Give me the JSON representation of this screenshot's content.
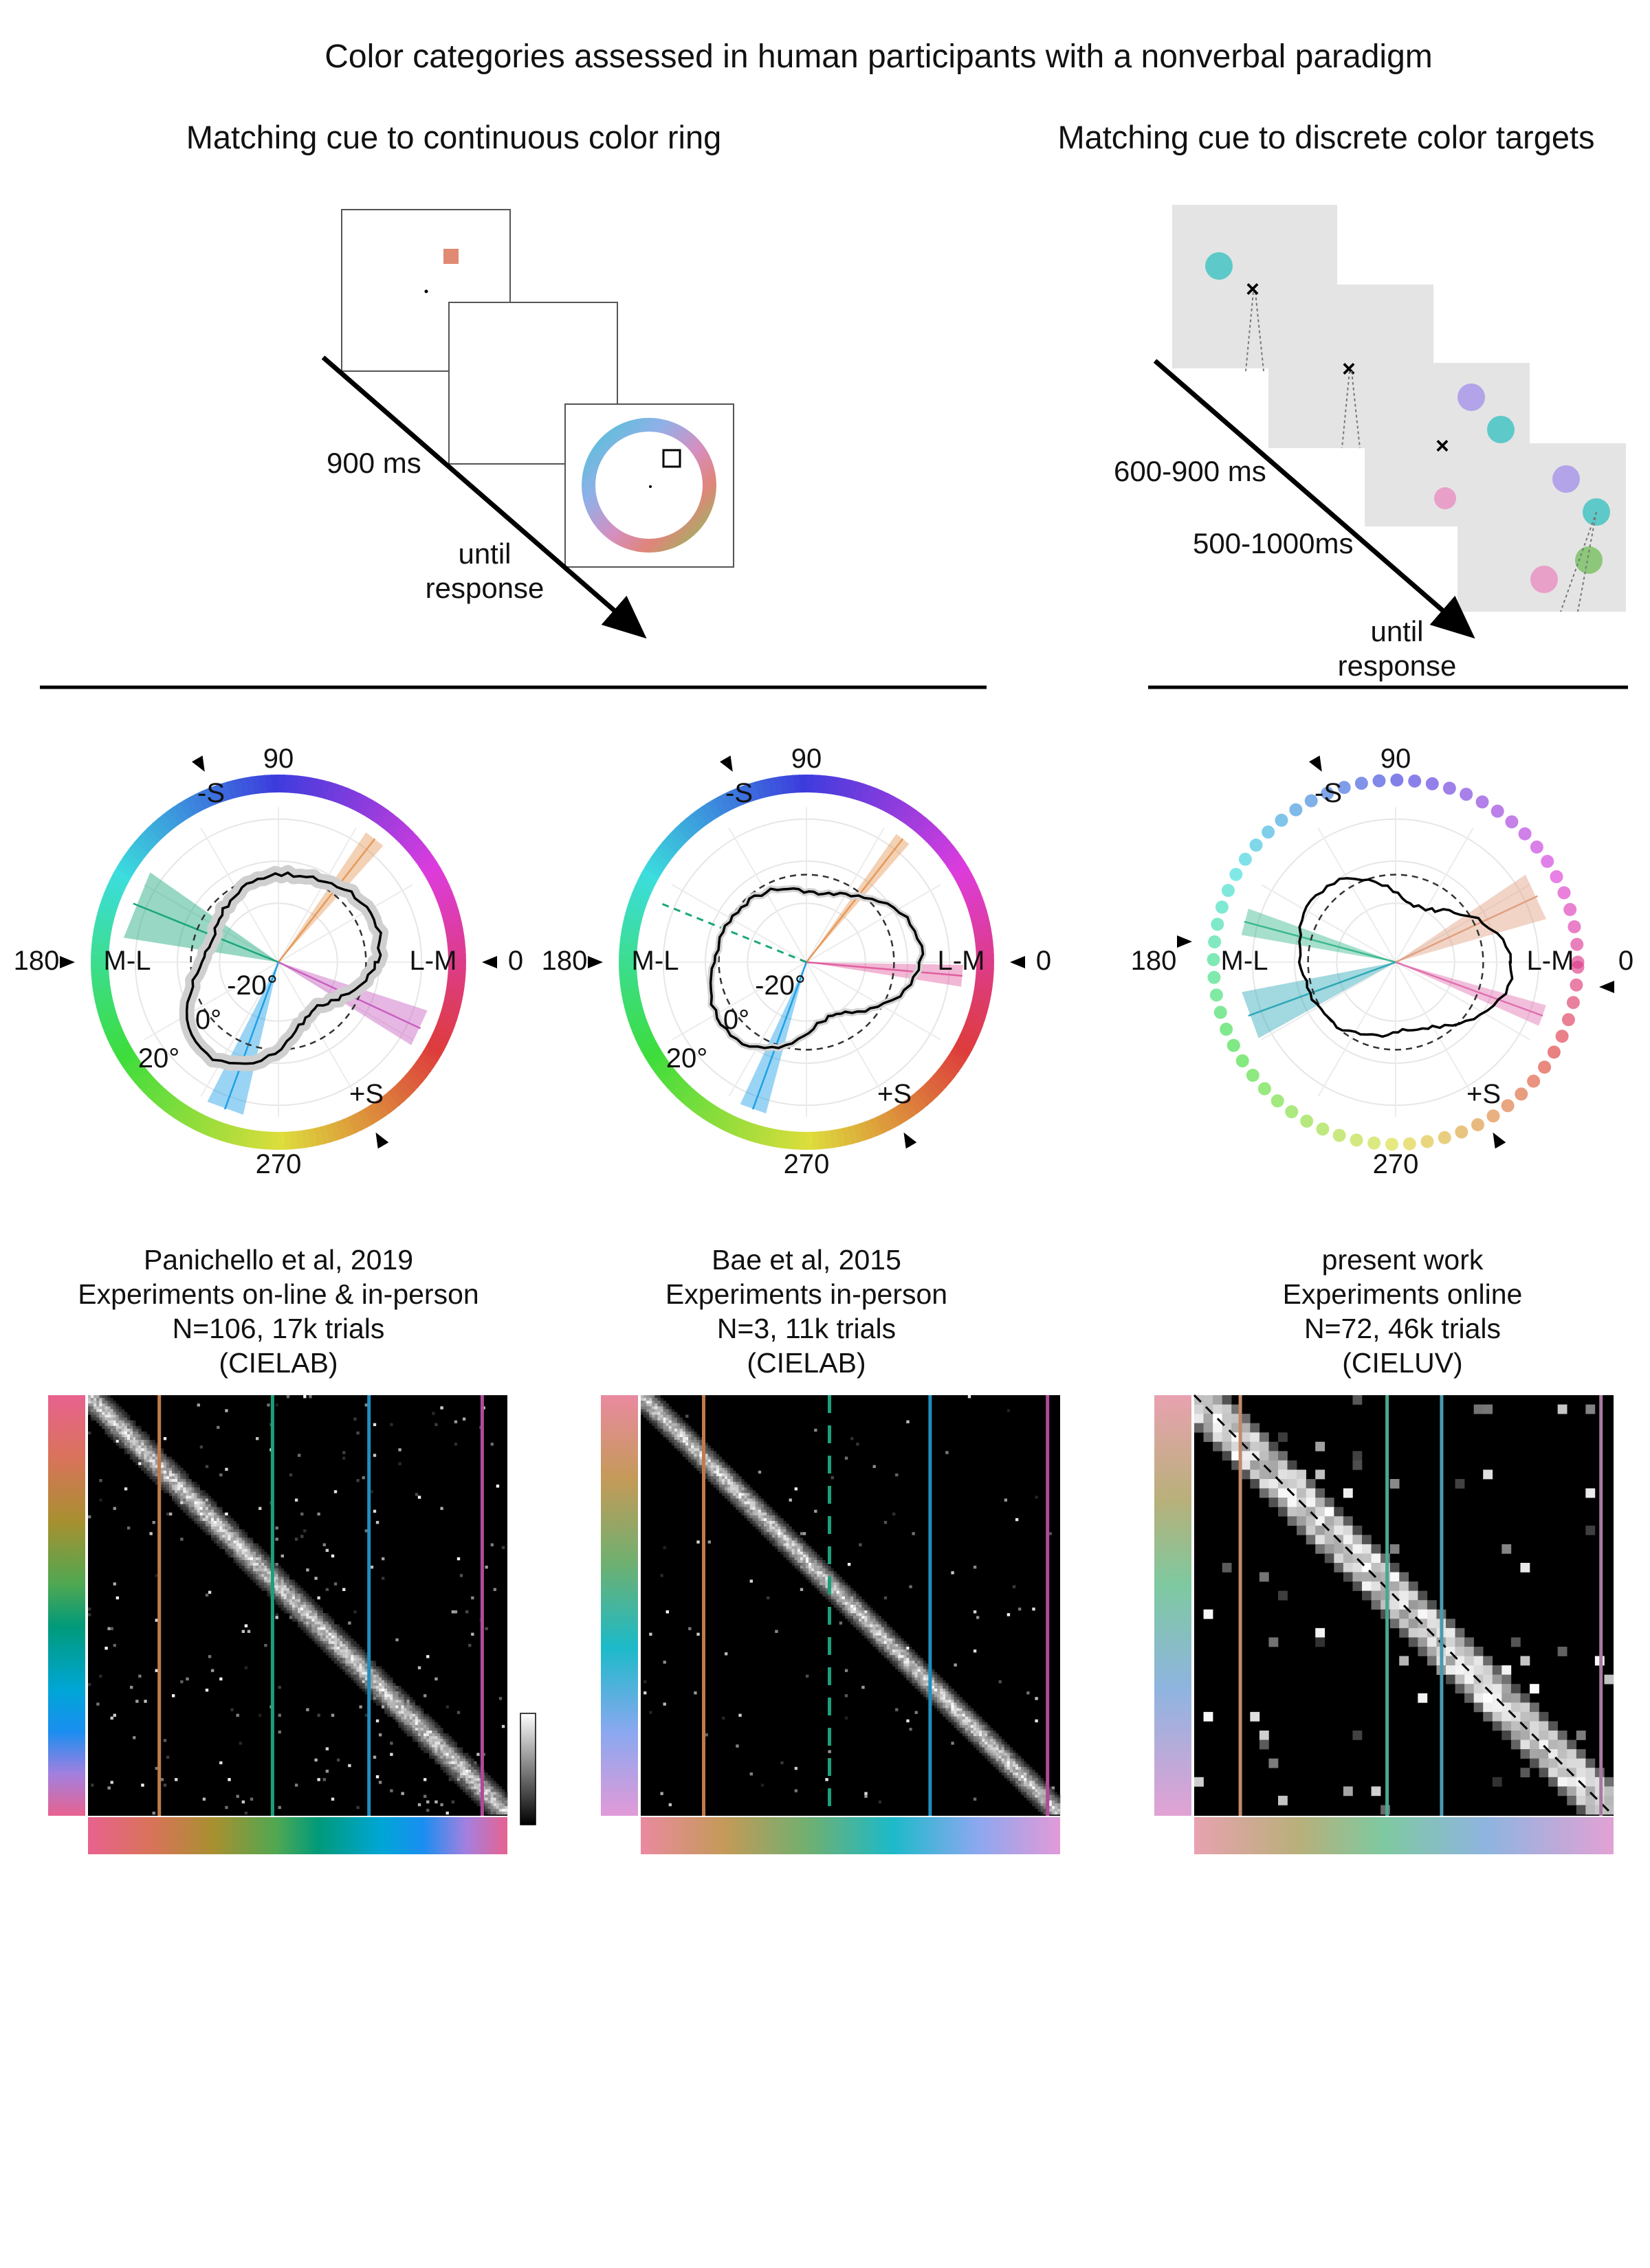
{
  "page": {
    "title": "Color categories assessed in human participants with a nonverbal paradigm",
    "left_heading": "Matching cue to continuous color ring",
    "right_heading": "Matching cue to discrete color targets"
  },
  "paradigm_continuous": {
    "time_1": "900 ms",
    "time_2_line1": "until",
    "time_2_line2": "response",
    "cue_color": "#e08a74"
  },
  "paradigm_discrete": {
    "time_1": "600-900 ms",
    "time_2": "500-1000ms",
    "time_3_line1": "until",
    "time_3_line2": "response",
    "frame_color": "#e4e4e4"
  },
  "polar_plots": [
    {
      "id": "panichello",
      "label_90": "90",
      "label_0": "0",
      "label_180": "180",
      "label_270": "270",
      "label_neg_s": "-S",
      "label_pos_s": "+S",
      "label_ml": "M-L",
      "label_lm": "L-M",
      "label_neg20": "-20°",
      "label_0deg": "0°",
      "label_20": "20°",
      "caption": [
        "Panichello et al, 2019",
        "Experiments on-line & in-person",
        "N=106, 17k trials",
        "(CIELAB)"
      ]
    },
    {
      "id": "bae",
      "label_90": "90",
      "label_0": "0",
      "label_180": "180",
      "label_270": "270",
      "label_neg_s": "-S",
      "label_pos_s": "+S",
      "label_ml": "M-L",
      "label_lm": "L-M",
      "label_neg20": "-20°",
      "label_0deg": "0°",
      "label_20": "20°",
      "caption": [
        "Bae et al, 2015",
        "Experiments in-person",
        "N=3, 11k trials",
        "(CIELAB)"
      ]
    },
    {
      "id": "present",
      "label_90": "90",
      "label_0": "0",
      "label_180": "180",
      "label_270": "270",
      "label_neg_s": "-S",
      "label_pos_s": "+S",
      "label_ml": "M-L",
      "label_lm": "L-M",
      "caption": [
        "present work",
        "Experiments online",
        "N=72, 46k trials",
        "(CIELUV)"
      ]
    }
  ]
}
